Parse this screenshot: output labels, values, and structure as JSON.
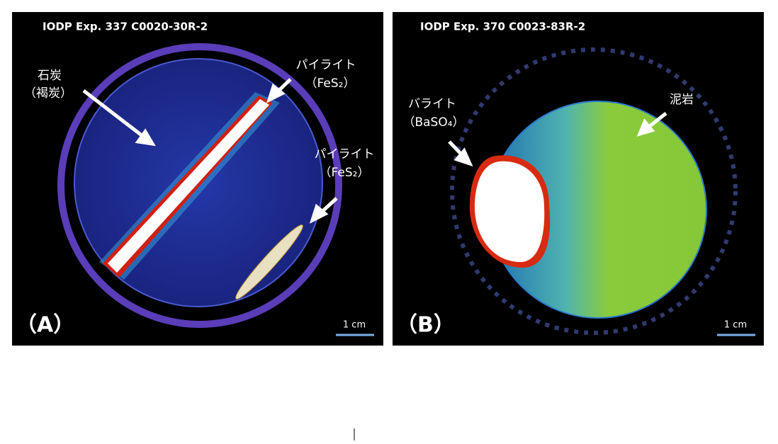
{
  "panels": [
    {
      "header": "IODP Exp. 337 C0020-30R-2",
      "label": "（A）",
      "scale": "1 cm",
      "annotations": [
        "石炭",
        "（褐炭）",
        "パイライト",
        "（FeS₂）",
        "パイライト",
        "（FeS₂）"
      ]
    },
    {
      "header": "IODP Exp. 370 C0023-83R-2",
      "label": "（B）",
      "scale": "1 cm",
      "annotations": [
        "バライト",
        "（BaSO₄）",
        "泥岩"
      ]
    }
  ]
}
